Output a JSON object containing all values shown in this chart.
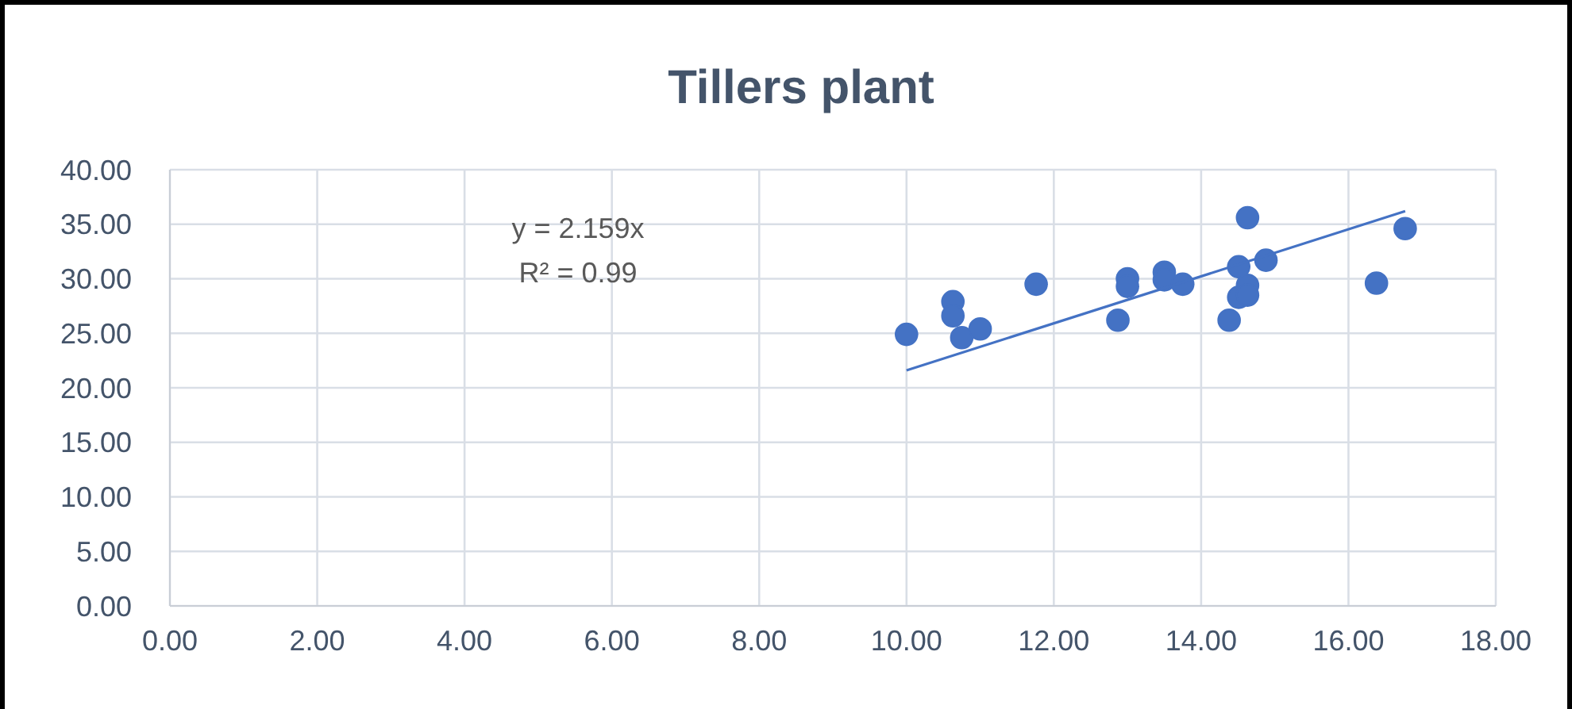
{
  "chart_data": {
    "type": "scatter",
    "title": "Tillers plant",
    "xlim": [
      0,
      18
    ],
    "xticks": [
      {
        "value": 0,
        "label": "0.00"
      },
      {
        "value": 2,
        "label": "2.00"
      },
      {
        "value": 4,
        "label": "4.00"
      },
      {
        "value": 6,
        "label": "6.00"
      },
      {
        "value": 8,
        "label": "8.00"
      },
      {
        "value": 10,
        "label": "10.00"
      },
      {
        "value": 12,
        "label": "12.00"
      },
      {
        "value": 14,
        "label": "14.00"
      },
      {
        "value": 16,
        "label": "16.00"
      },
      {
        "value": 18,
        "label": "18.00"
      }
    ],
    "ylim": [
      0,
      40
    ],
    "yticks": [
      {
        "value": 0,
        "label": "0.00"
      },
      {
        "value": 5,
        "label": "5.00"
      },
      {
        "value": 10,
        "label": "10.00"
      },
      {
        "value": 15,
        "label": "15.00"
      },
      {
        "value": 20,
        "label": "20.00"
      },
      {
        "value": 25,
        "label": "25.00"
      },
      {
        "value": 30,
        "label": "30.00"
      },
      {
        "value": 35,
        "label": "35.00"
      },
      {
        "value": 40,
        "label": "40.00"
      }
    ],
    "grid": true,
    "series": [
      {
        "marker": "circle",
        "color": "#4472c4",
        "x": [
          10.0,
          10.63,
          10.63,
          10.75,
          11.0,
          11.76,
          12.87,
          13.0,
          13.0,
          13.5,
          13.5,
          13.75,
          14.38,
          14.51,
          14.51,
          14.63,
          14.63,
          14.63,
          14.88,
          16.38,
          16.77
        ],
        "values": [
          24.9,
          27.9,
          26.6,
          24.6,
          25.4,
          29.5,
          26.2,
          30.0,
          29.3,
          30.6,
          29.9,
          29.5,
          26.2,
          31.1,
          28.3,
          35.6,
          29.4,
          28.5,
          31.7,
          29.6,
          34.6
        ]
      },
      {
        "type": "line",
        "color": "#4472c4",
        "x": [
          10.0,
          16.77
        ],
        "values": [
          21.6,
          36.2
        ],
        "marker": "none",
        "line_style": "solid"
      }
    ],
    "annotations": [
      "y = 2.159x",
      "R² = 0.99"
    ]
  }
}
